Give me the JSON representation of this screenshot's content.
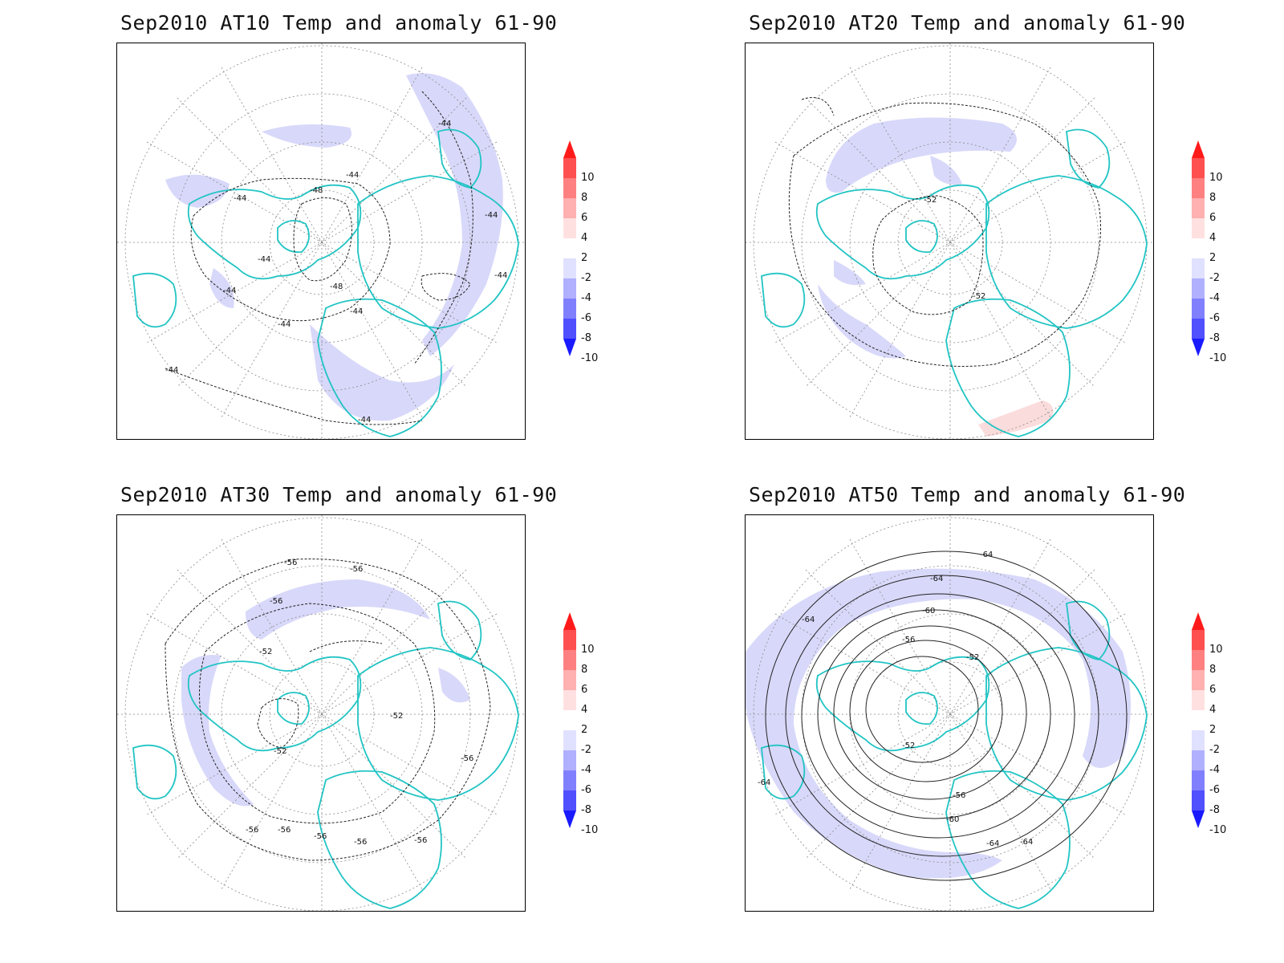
{
  "panels": [
    {
      "title": "Sep2010 AT10 Temp and anomaly 61-90",
      "contour_labels": [
        "-44",
        "-44",
        "-44",
        "-44",
        "-44",
        "-44",
        "-44",
        "-44",
        "-44",
        "-48",
        "-48",
        "-44",
        "-44"
      ]
    },
    {
      "title": "Sep2010 AT20 Temp and anomaly 61-90",
      "contour_labels": [
        "-52",
        "-52"
      ]
    },
    {
      "title": "Sep2010 AT30 Temp and anomaly 61-90",
      "contour_labels": [
        "-56",
        "-56",
        "-56",
        "-52",
        "-52",
        "-52",
        "-56",
        "-56",
        "-56",
        "-56",
        "-56",
        "-56"
      ]
    },
    {
      "title": "Sep2010 AT50 Temp and anomaly 61-90",
      "contour_labels": [
        "-64",
        "-64",
        "-64",
        "-60",
        "-56",
        "-52",
        "-52",
        "-56",
        "-60",
        "-64",
        "-64",
        "-64"
      ]
    }
  ],
  "colorbar": {
    "levels": [
      "10",
      "8",
      "6",
      "4",
      "2",
      "-2",
      "-4",
      "-6",
      "-8",
      "-10"
    ],
    "colors": [
      "#ff1a1a",
      "#ff5050",
      "#ff8080",
      "#ffb0b0",
      "#ffe0e0",
      "#ffffff",
      "#e0e0ff",
      "#b0b0ff",
      "#8080ff",
      "#5050ff",
      "#1a1aff"
    ]
  },
  "colors": {
    "coast": "#22c4c4",
    "anomaly_negative_fill": "#d8d8fa",
    "anomaly_positive_fill": "#fbdcdc",
    "contour": "#222222",
    "grid": "#8a8a8a"
  }
}
